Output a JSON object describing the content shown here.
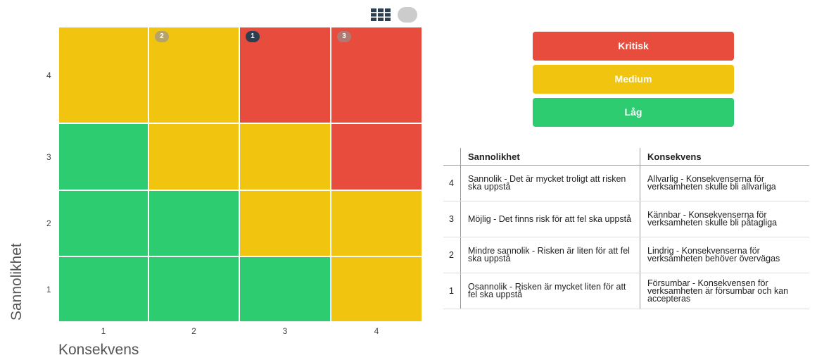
{
  "matrix": {
    "y_label": "Sannolikhet",
    "x_label": "Konsekvens",
    "row_labels": [
      "4",
      "3",
      "2",
      "1"
    ],
    "col_labels": [
      "1",
      "2",
      "3",
      "4"
    ],
    "cells": [
      [
        {
          "color": "#f1c40f"
        },
        {
          "color": "#f1c40f",
          "badge": "2",
          "badge_color": "#b5a36a"
        },
        {
          "color": "#e74c3c",
          "badge": "1",
          "badge_color": "#2c3e50"
        },
        {
          "color": "#e74c3c",
          "badge": "3",
          "badge_color": "#b07a72"
        }
      ],
      [
        {
          "color": "#2ecc71"
        },
        {
          "color": "#f1c40f"
        },
        {
          "color": "#f1c40f"
        },
        {
          "color": "#e74c3c"
        }
      ],
      [
        {
          "color": "#2ecc71"
        },
        {
          "color": "#2ecc71"
        },
        {
          "color": "#f1c40f"
        },
        {
          "color": "#f1c40f"
        }
      ],
      [
        {
          "color": "#2ecc71"
        },
        {
          "color": "#2ecc71"
        },
        {
          "color": "#2ecc71"
        },
        {
          "color": "#f1c40f"
        }
      ]
    ]
  },
  "legend": [
    {
      "label": "Kritisk",
      "color": "#e74c3c"
    },
    {
      "label": "Medium",
      "color": "#f1c40f"
    },
    {
      "label": "Låg",
      "color": "#2ecc71"
    }
  ],
  "table": {
    "header": [
      "Sannolikhet",
      "Konsekvens"
    ],
    "rows": [
      [
        "4",
        "Sannolik - Det är mycket troligt att risken ska uppstå",
        "Allvarlig - Konsekvenserna för verksamheten skulle bli allvarliga"
      ],
      [
        "3",
        "Möjlig - Det finns risk för att fel ska uppstå",
        "Kännbar - Konsekvenserna för verksamheten skulle bli påtagliga"
      ],
      [
        "2",
        "Mindre sannolik - Risken är liten för att fel ska uppstå",
        "Lindrig - Konsekvenserna för verksamheten behöver övervägas"
      ],
      [
        "1",
        "Osannolik - Risken är mycket liten för att fel ska uppstå",
        "Försumbar - Konsekvensen för verksamheten är försumbar och kan accepteras"
      ]
    ]
  }
}
